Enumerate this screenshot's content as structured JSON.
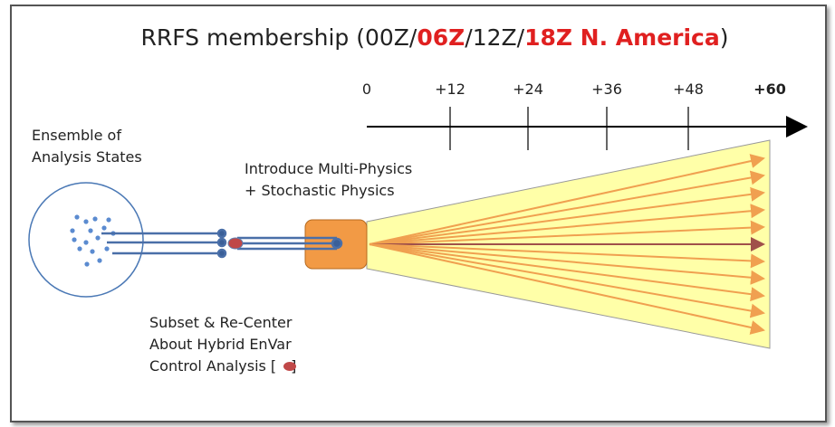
{
  "title": {
    "parts": [
      "RRFS membership (00Z/",
      "06Z",
      "/12Z/",
      "18Z N. America",
      ")"
    ]
  },
  "timeline": {
    "labels": [
      "0",
      "+12",
      "+24",
      "+36",
      "+48",
      "+60"
    ]
  },
  "ensemble_label": [
    "Ensemble of",
    "Analysis States"
  ],
  "physics_label": [
    "Introduce Multi-Physics",
    "+ Stochastic Physics"
  ],
  "subset_label": [
    "Subset & Re-Center",
    "About Hybrid EnVar",
    "Control Analysis [",
    "]"
  ]
}
